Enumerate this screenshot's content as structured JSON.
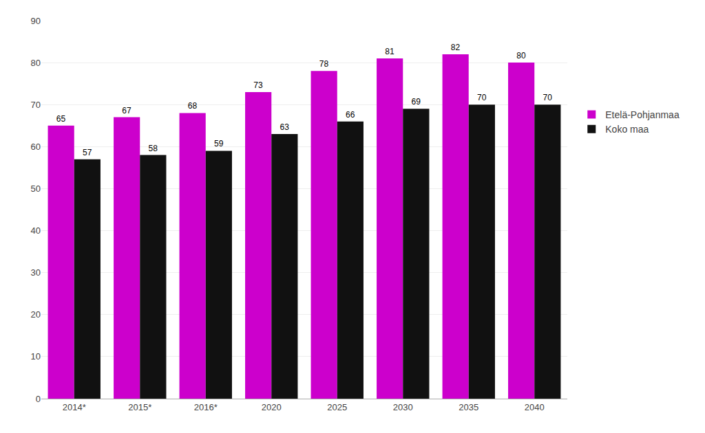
{
  "chart_data": {
    "type": "bar",
    "categories": [
      "2014*",
      "2015*",
      "2016*",
      "2020",
      "2025",
      "2030",
      "2035",
      "2040"
    ],
    "series": [
      {
        "name": "Etelä-Pohjanmaa",
        "color": "#CC00CC",
        "values": [
          65,
          67,
          68,
          73,
          78,
          81,
          82,
          80
        ]
      },
      {
        "name": "Koko maa",
        "color": "#111111",
        "values": [
          57,
          58,
          59,
          63,
          66,
          69,
          70,
          70
        ]
      }
    ],
    "ylim": [
      0,
      90
    ],
    "yticks": [
      0,
      10,
      20,
      30,
      40,
      50,
      60,
      70,
      80,
      90
    ],
    "grid": true,
    "data_labels": true,
    "legend": "right"
  }
}
